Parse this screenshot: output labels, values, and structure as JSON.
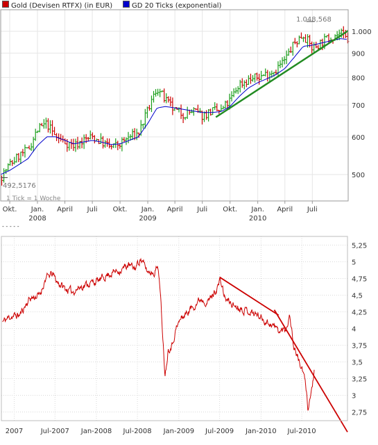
{
  "legend": {
    "gold_label": "Gold (Devisen RTFX) (in EUR)",
    "gold_color": "#cc0000",
    "ma_label": "GD 20 Ticks (exponential)",
    "ma_color": "#0000cc"
  },
  "top_chart": {
    "max_annotation": "1.048,568",
    "min_annotation": "492,5176",
    "tick_note": "1 Tick = 1 Woche",
    "footer_mark": "- - - - -"
  },
  "chart_data": [
    {
      "type": "line",
      "title": "Gold (Devisen RTFX) (in EUR)",
      "subtitle": "1 Tick = 1 Woche",
      "y_scale": "log",
      "y_ticks": [
        500,
        600,
        700,
        800,
        900,
        1000
      ],
      "y_tick_labels": [
        "500",
        "600",
        "700",
        "800",
        "900",
        "1.000"
      ],
      "ylim": [
        440,
        1110
      ],
      "x_ticks": [
        {
          "date": "2007-10",
          "label": "Okt."
        },
        {
          "date": "2008-01",
          "label": "Jan.",
          "year": "2008"
        },
        {
          "date": "2008-04",
          "label": "April"
        },
        {
          "date": "2008-07",
          "label": "Juli"
        },
        {
          "date": "2008-10",
          "label": "Okt."
        },
        {
          "date": "2009-01",
          "label": "Jan.",
          "year": "2009"
        },
        {
          "date": "2009-04",
          "label": "April"
        },
        {
          "date": "2009-07",
          "label": "Juli"
        },
        {
          "date": "2009-10",
          "label": "Okt."
        },
        {
          "date": "2010-01",
          "label": "Jan.",
          "year": "2010"
        },
        {
          "date": "2010-04",
          "label": "April"
        },
        {
          "date": "2010-07",
          "label": "Juli"
        }
      ],
      "xlim": [
        "2007-09-01",
        "2010-10-28"
      ],
      "series": [
        {
          "name": "Gold (Devisen RTFX) (in EUR)",
          "color": "#cc0000",
          "x": [
            "2007-09-01",
            "2007-10-01",
            "2007-11-01",
            "2007-12-01",
            "2008-01-01",
            "2008-02-01",
            "2008-03-01",
            "2008-04-01",
            "2008-05-01",
            "2008-06-01",
            "2008-07-01",
            "2008-08-01",
            "2008-09-01",
            "2008-10-01",
            "2008-11-01",
            "2008-12-01",
            "2009-01-01",
            "2009-02-01",
            "2009-03-01",
            "2009-04-01",
            "2009-05-01",
            "2009-06-01",
            "2009-07-01",
            "2009-08-01",
            "2009-09-01",
            "2009-10-01",
            "2009-11-01",
            "2009-12-01",
            "2010-01-01",
            "2010-02-01",
            "2010-03-01",
            "2010-04-01",
            "2010-05-01",
            "2010-06-01",
            "2010-07-01",
            "2010-08-01",
            "2010-09-01",
            "2010-10-01",
            "2010-10-25"
          ],
          "values": [
            493,
            525,
            548,
            563,
            620,
            640,
            600,
            585,
            575,
            590,
            600,
            585,
            570,
            580,
            600,
            610,
            680,
            760,
            715,
            680,
            670,
            680,
            665,
            680,
            680,
            715,
            775,
            790,
            800,
            815,
            830,
            870,
            940,
            985,
            920,
            950,
            975,
            990,
            960
          ]
        },
        {
          "name": "GD 20 Ticks (exponential)",
          "color": "#0000cc",
          "x": [
            "2007-09-01",
            "2007-10-01",
            "2007-11-01",
            "2007-12-01",
            "2008-01-01",
            "2008-02-01",
            "2008-03-01",
            "2008-04-01",
            "2008-05-01",
            "2008-06-01",
            "2008-07-01",
            "2008-08-01",
            "2008-09-01",
            "2008-10-01",
            "2008-11-01",
            "2008-12-01",
            "2009-01-01",
            "2009-02-01",
            "2009-03-01",
            "2009-04-01",
            "2009-05-01",
            "2009-06-01",
            "2009-07-01",
            "2009-08-01",
            "2009-09-01",
            "2009-10-01",
            "2009-11-01",
            "2009-12-01",
            "2010-01-01",
            "2010-02-01",
            "2010-03-01",
            "2010-04-01",
            "2010-05-01",
            "2010-06-01",
            "2010-07-01",
            "2010-08-01",
            "2010-09-01",
            "2010-10-01",
            "2010-10-25"
          ],
          "values": [
            500,
            510,
            525,
            540,
            575,
            600,
            600,
            590,
            580,
            585,
            590,
            585,
            578,
            580,
            590,
            600,
            640,
            690,
            695,
            690,
            685,
            680,
            675,
            675,
            678,
            695,
            730,
            760,
            780,
            795,
            810,
            835,
            880,
            930,
            935,
            945,
            955,
            965,
            962
          ]
        }
      ],
      "annotations": [
        {
          "x": "2010-06-25",
          "y": 1048.568,
          "text": "1.048,568"
        },
        {
          "x": "2007-09-01",
          "y": 492.5176,
          "text": "492,5176"
        }
      ],
      "trendlines": [
        {
          "color": "#228b22",
          "from": {
            "x": "2009-08-15",
            "y": 660
          },
          "to": {
            "x": "2010-10-28",
            "y": 1003
          }
        }
      ],
      "grid": true
    },
    {
      "type": "line",
      "y_ticks": [
        2.75,
        3,
        3.25,
        3.5,
        3.75,
        4,
        4.25,
        4.5,
        4.75,
        5,
        5.25
      ],
      "y_tick_labels": [
        "2,75",
        "3",
        "3,25",
        "3,5",
        "3,75",
        "4",
        "4,25",
        "4,5",
        "4,75",
        "5",
        "5,25"
      ],
      "ylim": [
        2.62,
        5.38
      ],
      "x_ticks": [
        {
          "date": "2007-01",
          "label": "2007"
        },
        {
          "date": "2007-07",
          "label": "Jul-2007"
        },
        {
          "date": "2008-01",
          "label": "Jan-2008"
        },
        {
          "date": "2008-07",
          "label": "Jul-2008"
        },
        {
          "date": "2009-01",
          "label": "Jan-2009"
        },
        {
          "date": "2009-07",
          "label": "Jul-2009"
        },
        {
          "date": "2010-01",
          "label": "Jan-2010"
        },
        {
          "date": "2010-07",
          "label": "Jul-2010"
        }
      ],
      "xlim": [
        "2006-11-05",
        "2011-01-20"
      ],
      "series": [
        {
          "color": "#cc0000",
          "x": [
            "2006-11-10",
            "2006-12-15",
            "2007-01-25",
            "2007-03-10",
            "2007-04-25",
            "2007-05-20",
            "2007-06-20",
            "2007-07-10",
            "2007-08-15",
            "2007-09-15",
            "2007-10-20",
            "2007-12-01",
            "2008-01-15",
            "2008-02-15",
            "2008-03-20",
            "2008-04-20",
            "2008-05-20",
            "2008-06-20",
            "2008-07-15",
            "2008-08-15",
            "2008-09-15",
            "2008-10-01",
            "2008-10-15",
            "2008-11-01",
            "2008-11-15",
            "2008-12-01",
            "2008-12-20",
            "2009-01-10",
            "2009-02-10",
            "2009-03-10",
            "2009-04-10",
            "2009-05-10",
            "2009-06-10",
            "2009-07-05",
            "2009-07-25",
            "2009-09-01",
            "2009-10-10",
            "2009-11-15",
            "2009-12-20",
            "2010-01-25",
            "2010-02-25",
            "2010-03-25",
            "2010-04-20",
            "2010-05-10",
            "2010-05-25",
            "2010-06-10",
            "2010-06-25",
            "2010-07-10",
            "2010-07-20",
            "2010-07-28",
            "2010-08-10",
            "2010-08-25"
          ],
          "values": [
            4.1,
            4.18,
            4.2,
            4.45,
            4.5,
            4.75,
            4.82,
            4.7,
            4.6,
            4.55,
            4.62,
            4.68,
            4.72,
            4.8,
            4.85,
            4.88,
            4.95,
            4.9,
            5.05,
            4.85,
            4.85,
            4.95,
            4.3,
            3.3,
            3.7,
            3.75,
            4.0,
            4.15,
            4.25,
            4.35,
            4.45,
            4.4,
            4.55,
            4.72,
            4.45,
            4.35,
            4.3,
            4.25,
            4.2,
            4.1,
            4.05,
            3.95,
            4.0,
            4.2,
            3.75,
            3.6,
            3.45,
            3.3,
            3.1,
            2.82,
            3.0,
            3.35
          ]
        }
      ],
      "trendlines": [
        {
          "color": "#cc0000",
          "from": {
            "x": "2009-07-01",
            "y": 4.77
          },
          "to": {
            "x": "2010-03-20",
            "y": 4.2
          }
        },
        {
          "color": "#cc0000",
          "from": {
            "x": "2010-03-01",
            "y": 4.28
          },
          "to": {
            "x": "2011-01-20",
            "y": 2.45
          }
        }
      ],
      "grid": true
    }
  ]
}
